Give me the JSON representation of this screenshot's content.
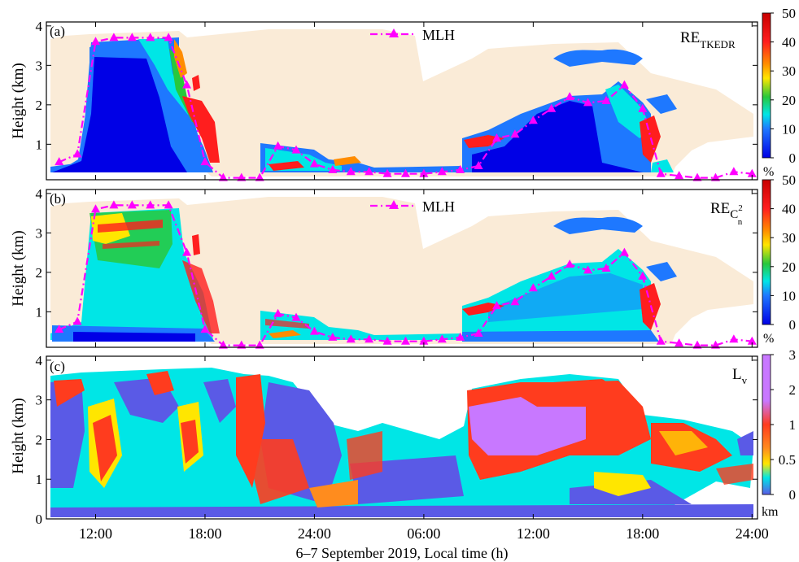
{
  "chart_data": [
    {
      "type": "heatmap",
      "panel_label": "(a)",
      "ylabel": "Height (km)",
      "yticks": [
        "1",
        "2",
        "3",
        "4"
      ],
      "ylim": [
        0.1,
        4.1
      ],
      "legend": "MLH",
      "annotation": {
        "base": "RE",
        "sub": "TKEDR",
        "sup": ""
      },
      "colorbar": {
        "ticks": [
          "0",
          "10",
          "20",
          "30",
          "40",
          "50"
        ],
        "range": [
          0,
          50
        ],
        "unit": "%",
        "colors": [
          "#0000e6",
          "#1e78ff",
          "#00e6e6",
          "#28c83c",
          "#ffe600",
          "#ff8c00",
          "#ff1e1e",
          "#c80000"
        ]
      },
      "mlh_series": {
        "name": "MLH",
        "x": [
          10,
          11,
          12,
          13,
          14,
          15,
          16,
          17,
          18,
          19,
          20,
          21,
          22,
          23,
          24,
          25,
          26,
          27,
          28,
          29,
          30,
          31,
          32,
          33,
          34,
          35,
          36,
          37,
          38,
          39,
          40,
          41,
          42,
          43,
          44,
          45,
          46,
          47,
          48
        ],
        "y": [
          0.55,
          0.75,
          3.6,
          3.7,
          3.7,
          3.7,
          3.7,
          2.5,
          0.55,
          0.15,
          0.15,
          0.15,
          0.95,
          0.85,
          0.5,
          0.35,
          0.3,
          0.3,
          0.25,
          0.25,
          0.25,
          0.3,
          0.35,
          0.45,
          1.15,
          1.25,
          1.6,
          1.9,
          2.2,
          2.05,
          2.1,
          2.5,
          1.9,
          0.25,
          0.2,
          0.15,
          0.15,
          0.3,
          0.25
        ]
      }
    },
    {
      "type": "heatmap",
      "panel_label": "(b)",
      "ylabel": "Height (km)",
      "yticks": [
        "1",
        "2",
        "3",
        "4"
      ],
      "ylim": [
        0.1,
        4.1
      ],
      "legend": "MLH",
      "annotation": {
        "base": "RE",
        "sub": "n",
        "sup": "2",
        "sym": "C"
      },
      "colorbar": {
        "ticks": [
          "0",
          "10",
          "20",
          "30",
          "40",
          "50"
        ],
        "range": [
          0,
          50
        ],
        "unit": "%",
        "colors": [
          "#0000e6",
          "#1e78ff",
          "#00e6e6",
          "#28c83c",
          "#ffe600",
          "#ff8c00",
          "#ff1e1e",
          "#c80000"
        ]
      },
      "mlh_series": {
        "name": "MLH",
        "x": [
          10,
          11,
          12,
          13,
          14,
          15,
          16,
          17,
          18,
          19,
          20,
          21,
          22,
          23,
          24,
          25,
          26,
          27,
          28,
          29,
          30,
          31,
          32,
          33,
          34,
          35,
          36,
          37,
          38,
          39,
          40,
          41,
          42,
          43,
          44,
          45,
          46,
          47,
          48
        ],
        "y": [
          0.55,
          0.75,
          3.6,
          3.7,
          3.7,
          3.7,
          3.7,
          2.5,
          0.55,
          0.15,
          0.15,
          0.15,
          0.95,
          0.85,
          0.5,
          0.35,
          0.3,
          0.3,
          0.25,
          0.25,
          0.25,
          0.3,
          0.35,
          0.45,
          1.15,
          1.25,
          1.6,
          1.9,
          2.2,
          2.05,
          2.1,
          2.5,
          1.9,
          0.25,
          0.2,
          0.15,
          0.15,
          0.3,
          0.25
        ]
      }
    },
    {
      "type": "heatmap",
      "panel_label": "(c)",
      "ylabel": "Height (km)",
      "yticks": [
        "0",
        "1",
        "2",
        "3",
        "4"
      ],
      "ylim": [
        0,
        4.1
      ],
      "annotation": {
        "base": "L",
        "sub": "v",
        "sup": ""
      },
      "colorbar": {
        "ticks": [
          "0",
          "0.5",
          "1",
          "2",
          "3"
        ],
        "range": [
          0,
          3
        ],
        "unit": "km",
        "colors": [
          "#5a5ae6",
          "#00e6e6",
          "#ffe600",
          "#ff8c1e",
          "#ff3c1e",
          "#ff3c1e",
          "#c878ff",
          "#c878ff"
        ]
      },
      "xlabel": "6–7 September 2019, Local time (h)",
      "xticks": [
        "12:00",
        "18:00",
        "24:00",
        "06:00",
        "12:00",
        "18:00",
        "24:00"
      ],
      "xtick_values": [
        12,
        18,
        24,
        30,
        36,
        42,
        48
      ],
      "xlim": [
        9.3,
        48.3
      ]
    }
  ]
}
